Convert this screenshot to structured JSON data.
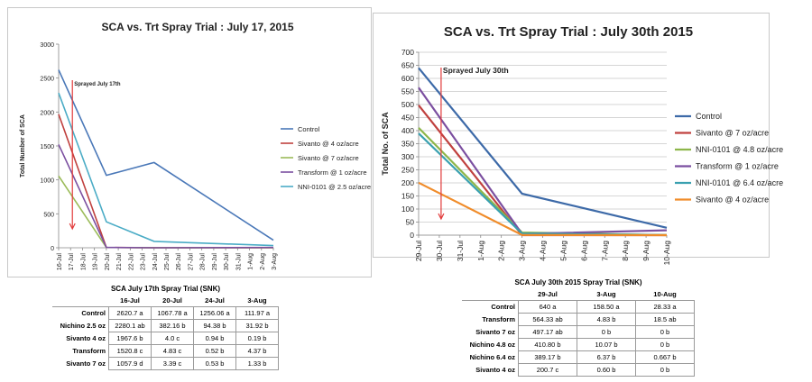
{
  "chart_data": [
    {
      "type": "line",
      "title": "SCA vs. Trt Spray Trial : July 17, 2015",
      "ylabel": "Total Number of SCA",
      "xlabel": "",
      "categories": [
        "16-Jul",
        "17-Jul",
        "18-Jul",
        "19-Jul",
        "20-Jul",
        "21-Jul",
        "22-Jul",
        "23-Jul",
        "24-Jul",
        "25-Jul",
        "26-Jul",
        "27-Jul",
        "28-Jul",
        "29-Jul",
        "30-Jul",
        "31-Jul",
        "1-Aug",
        "2-Aug",
        "3-Aug"
      ],
      "ylim": [
        0,
        3000
      ],
      "yticks": [
        "0",
        "500",
        "1000",
        "1500",
        "2000",
        "2500",
        "3000"
      ],
      "legend_position": "right",
      "annotation": "Sprayed July 17th",
      "series": [
        {
          "name": "Control",
          "color": "#4a78b8",
          "points": [
            [
              "16-Jul",
              2620.7
            ],
            [
              "20-Jul",
              1067.78
            ],
            [
              "24-Jul",
              1256.06
            ],
            [
              "3-Aug",
              111.97
            ]
          ]
        },
        {
          "name": "Sivanto @ 4 oz/acre",
          "color": "#c0413f",
          "points": [
            [
              "16-Jul",
              1967.6
            ],
            [
              "20-Jul",
              4.0
            ],
            [
              "24-Jul",
              0.94
            ],
            [
              "3-Aug",
              0.19
            ]
          ]
        },
        {
          "name": "Sivanto @ 7 oz/acre",
          "color": "#9bbb59",
          "points": [
            [
              "16-Jul",
              1057.9
            ],
            [
              "20-Jul",
              3.39
            ],
            [
              "24-Jul",
              0.53
            ],
            [
              "3-Aug",
              1.33
            ]
          ]
        },
        {
          "name": "Transform @ 1 oz/acre",
          "color": "#7b4fa0",
          "points": [
            [
              "16-Jul",
              1520.8
            ],
            [
              "20-Jul",
              4.83
            ],
            [
              "24-Jul",
              0.52
            ],
            [
              "3-Aug",
              4.37
            ]
          ]
        },
        {
          "name": "NNI-0101 @ 2.5 oz/acre",
          "color": "#4bacc6",
          "points": [
            [
              "16-Jul",
              2280.1
            ],
            [
              "20-Jul",
              382.16
            ],
            [
              "24-Jul",
              94.38
            ],
            [
              "3-Aug",
              31.92
            ]
          ]
        }
      ]
    },
    {
      "type": "line",
      "title": "SCA vs. Trt Spray Trial : July 30th 2015",
      "ylabel": "Total No. of SCA",
      "xlabel": "",
      "categories": [
        "29-Jul",
        "30-Jul",
        "31-Jul",
        "1-Aug",
        "2-Aug",
        "3-Aug",
        "4-Aug",
        "5-Aug",
        "6-Aug",
        "7-Aug",
        "8-Aug",
        "9-Aug",
        "10-Aug"
      ],
      "ylim": [
        0,
        700
      ],
      "yticks": [
        "0",
        "50",
        "100",
        "150",
        "200",
        "250",
        "300",
        "350",
        "400",
        "450",
        "500",
        "550",
        "600",
        "650",
        "700"
      ],
      "legend_position": "right",
      "annotation": "Sprayed July 30th",
      "series": [
        {
          "name": "Control",
          "color": "#3d6aa8",
          "points": [
            [
              "29-Jul",
              640
            ],
            [
              "3-Aug",
              158.5
            ],
            [
              "10-Aug",
              28.33
            ]
          ]
        },
        {
          "name": "Sivanto @ 7 oz/acre",
          "color": "#c0413f",
          "points": [
            [
              "29-Jul",
              497.17
            ],
            [
              "3-Aug",
              0
            ],
            [
              "10-Aug",
              0
            ]
          ]
        },
        {
          "name": "NNI-0101 @ 4.8 oz/acre",
          "color": "#8db64a",
          "points": [
            [
              "29-Jul",
              410.8
            ],
            [
              "3-Aug",
              10.07
            ],
            [
              "10-Aug",
              0
            ]
          ]
        },
        {
          "name": "Transform @ 1 oz/acre",
          "color": "#7b4fa0",
          "points": [
            [
              "29-Jul",
              564.33
            ],
            [
              "3-Aug",
              4.83
            ],
            [
              "10-Aug",
              18.5
            ]
          ]
        },
        {
          "name": "NNI-0101 @ 6.4 oz/acre",
          "color": "#3aa0b0",
          "points": [
            [
              "29-Jul",
              389.17
            ],
            [
              "3-Aug",
              6.37
            ],
            [
              "10-Aug",
              0.667
            ]
          ]
        },
        {
          "name": "Sivanto @ 4 oz/acre",
          "color": "#f08c2a",
          "points": [
            [
              "29-Jul",
              200.7
            ],
            [
              "3-Aug",
              0.6
            ],
            [
              "10-Aug",
              0
            ]
          ]
        }
      ]
    }
  ],
  "table1": {
    "title": "SCA July 17th Spray Trial (SNK)",
    "headers": [
      "16-Jul",
      "20-Jul",
      "24-Jul",
      "3-Aug"
    ],
    "rows": [
      {
        "label": "Control",
        "cells": [
          "2620.7 a",
          "1067.78 a",
          "1256.06 a",
          "111.97 a"
        ]
      },
      {
        "label": "Nichino 2.5 oz",
        "cells": [
          "2280.1 ab",
          "382.16 b",
          "94.38 b",
          "31.92 b"
        ]
      },
      {
        "label": "Sivanto 4 oz",
        "cells": [
          "1967.6 b",
          "4.0 c",
          "0.94 b",
          "0.19 b"
        ]
      },
      {
        "label": "Transform",
        "cells": [
          "1520.8 c",
          "4.83 c",
          "0.52 b",
          "4.37 b"
        ]
      },
      {
        "label": "Sivanto 7 oz",
        "cells": [
          "1057.9 d",
          "3.39 c",
          "0.53 b",
          "1.33 b"
        ]
      }
    ]
  },
  "table2": {
    "title": "SCA July 30th 2015 Spray Trial (SNK)",
    "headers": [
      "29-Jul",
      "3-Aug",
      "10-Aug"
    ],
    "rows": [
      {
        "label": "Control",
        "cells": [
          "640 a",
          "158.50 a",
          "28.33 a"
        ]
      },
      {
        "label": "Transform",
        "cells": [
          "564.33 ab",
          "4.83 b",
          "18.5 ab"
        ]
      },
      {
        "label": "Sivanto 7 oz",
        "cells": [
          "497.17 ab",
          "0 b",
          "0 b"
        ]
      },
      {
        "label": "Nichino 4.8 oz",
        "cells": [
          "410.80 b",
          "10.07 b",
          "0 b"
        ]
      },
      {
        "label": "Nichino 6.4 oz",
        "cells": [
          "389.17 b",
          "6.37 b",
          "0.667 b"
        ]
      },
      {
        "label": "Sivanto 4 oz",
        "cells": [
          "200.7 c",
          "0.60 b",
          "0 b"
        ]
      }
    ]
  }
}
